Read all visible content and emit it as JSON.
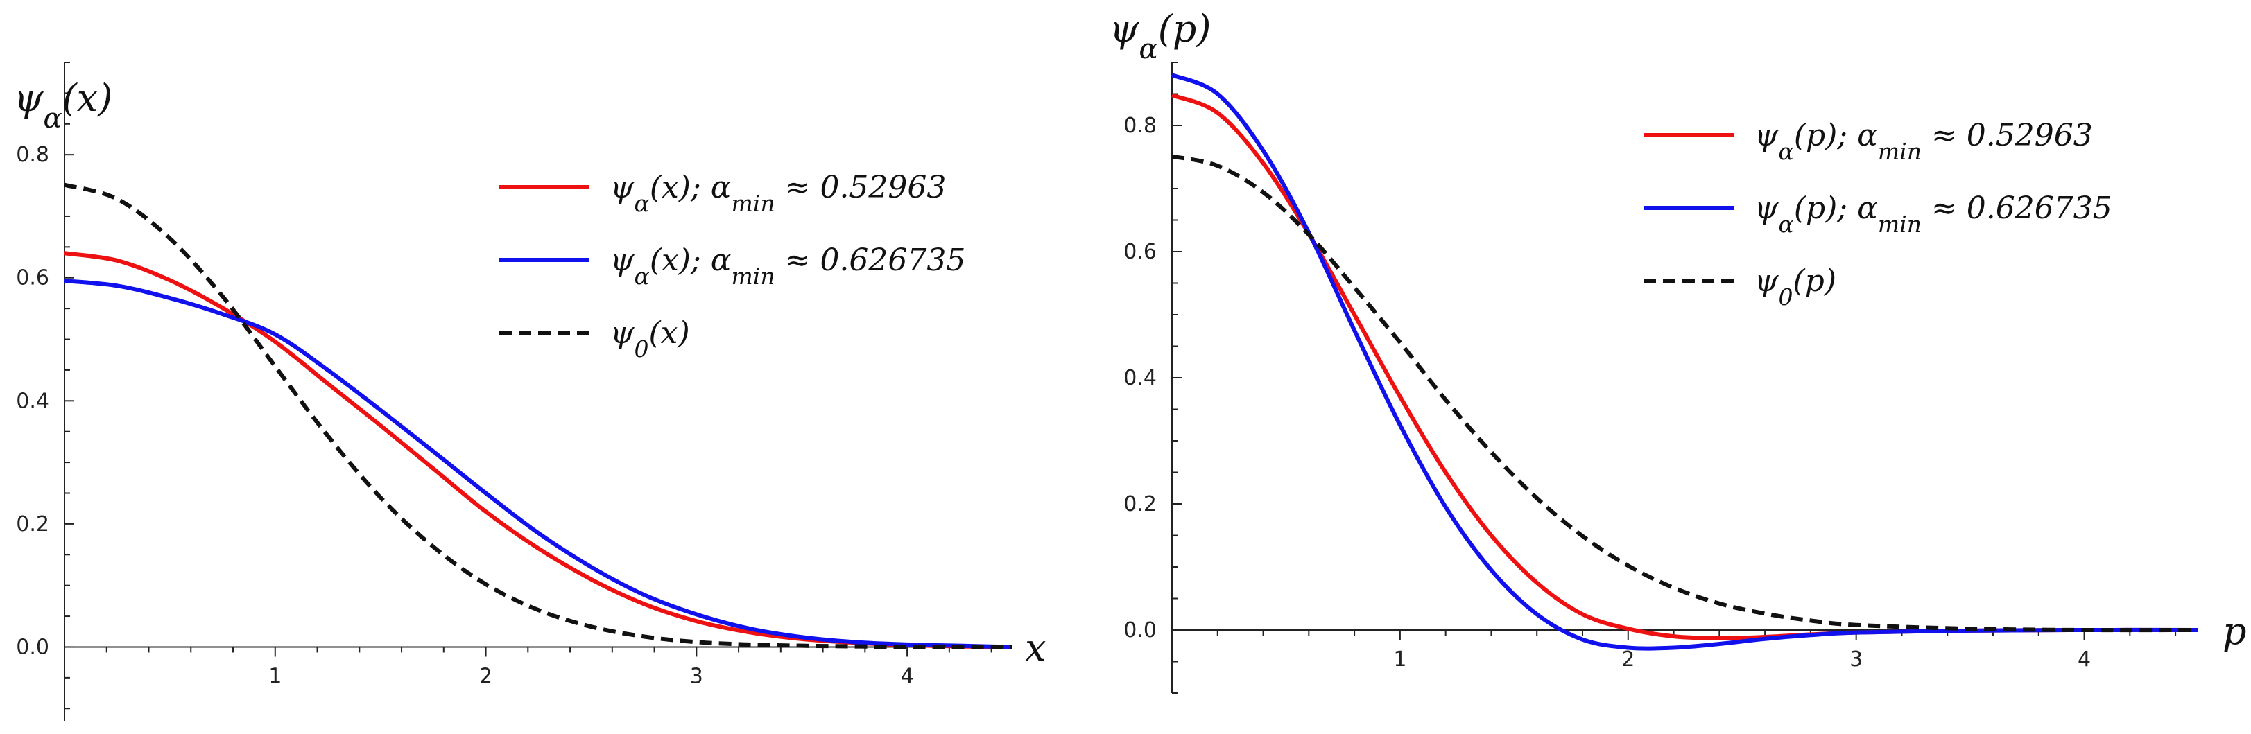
{
  "colors": {
    "red": "#ee1111",
    "blue": "#1111ee",
    "black": "#111111"
  },
  "chart_data": [
    {
      "type": "line",
      "title": "",
      "xlabel": "x",
      "ylabel": "ψα(x)",
      "xlim": [
        0,
        4.5
      ],
      "ylim": [
        -0.12,
        0.95
      ],
      "xticks": [
        1,
        2,
        3,
        4
      ],
      "yticks": [
        0.0,
        0.2,
        0.4,
        0.6,
        0.8
      ],
      "xtick_labels": [
        "1",
        "2",
        "3",
        "4"
      ],
      "ytick_labels": [
        "0.0",
        "0.2",
        "0.4",
        "0.6",
        "0.8"
      ],
      "legend_position": "top-right",
      "series": [
        {
          "name": "ψα(x); αmin ≈ 0.52963",
          "color": "#ee1111",
          "style": "solid",
          "x": [
            0,
            0.25,
            0.5,
            0.75,
            1.0,
            1.25,
            1.5,
            1.75,
            2.0,
            2.25,
            2.5,
            2.75,
            3.0,
            3.25,
            3.5,
            3.75,
            4.0,
            4.25,
            4.5
          ],
          "y": [
            0.64,
            0.628,
            0.596,
            0.551,
            0.496,
            0.428,
            0.36,
            0.29,
            0.22,
            0.16,
            0.11,
            0.07,
            0.042,
            0.024,
            0.013,
            0.007,
            0.003,
            0.001,
            0.0
          ]
        },
        {
          "name": "ψα(x); αmin ≈ 0.626735",
          "color": "#1111ee",
          "style": "solid",
          "x": [
            0,
            0.25,
            0.5,
            0.75,
            1.0,
            1.25,
            1.5,
            1.75,
            2.0,
            2.25,
            2.5,
            2.75,
            3.0,
            3.25,
            3.5,
            3.75,
            4.0,
            4.25,
            4.5
          ],
          "y": [
            0.595,
            0.587,
            0.567,
            0.541,
            0.508,
            0.45,
            0.385,
            0.318,
            0.25,
            0.185,
            0.13,
            0.085,
            0.053,
            0.03,
            0.016,
            0.008,
            0.004,
            0.002,
            0.0
          ]
        },
        {
          "name": "ψ0(x)",
          "color": "#111111",
          "style": "dashed",
          "x": [
            0,
            0.25,
            0.5,
            0.75,
            1.0,
            1.25,
            1.5,
            1.75,
            2.0,
            2.25,
            2.5,
            2.75,
            3.0,
            3.25,
            3.5,
            3.75,
            4.0,
            4.25,
            4.5
          ],
          "y": [
            0.751,
            0.728,
            0.664,
            0.57,
            0.456,
            0.343,
            0.243,
            0.163,
            0.102,
            0.06,
            0.033,
            0.017,
            0.008,
            0.004,
            0.002,
            0.001,
            0.0,
            0.0,
            0.0
          ]
        }
      ]
    },
    {
      "type": "line",
      "title": "",
      "xlabel": "p",
      "ylabel": "ψα(p)",
      "xlim": [
        0,
        4.5
      ],
      "ylim": [
        -0.1,
        0.9
      ],
      "xticks": [
        1,
        2,
        3,
        4
      ],
      "yticks": [
        0.0,
        0.2,
        0.4,
        0.6,
        0.8
      ],
      "xtick_labels": [
        "1",
        "2",
        "3",
        "4"
      ],
      "ytick_labels": [
        "0.0",
        "0.2",
        "0.4",
        "0.6",
        "0.8"
      ],
      "legend_position": "top-right",
      "series": [
        {
          "name": "ψα(p); αmin ≈ 0.52963",
          "color": "#ee1111",
          "style": "solid",
          "x": [
            0,
            0.2,
            0.4,
            0.6,
            0.8,
            1.0,
            1.2,
            1.4,
            1.6,
            1.8,
            2.0,
            2.2,
            2.4,
            2.6,
            2.8,
            3.0,
            3.5,
            4.0,
            4.5
          ],
          "y": [
            0.848,
            0.82,
            0.74,
            0.628,
            0.5,
            0.37,
            0.25,
            0.15,
            0.075,
            0.025,
            0.002,
            -0.01,
            -0.013,
            -0.011,
            -0.007,
            -0.004,
            -0.001,
            0.0,
            0.0
          ]
        },
        {
          "name": "ψα(p); αmin ≈ 0.626735",
          "color": "#1111ee",
          "style": "solid",
          "x": [
            0,
            0.2,
            0.4,
            0.6,
            0.8,
            1.0,
            1.2,
            1.4,
            1.6,
            1.8,
            2.0,
            2.2,
            2.4,
            2.6,
            2.8,
            3.0,
            3.5,
            4.0,
            4.5
          ],
          "y": [
            0.88,
            0.85,
            0.76,
            0.63,
            0.475,
            0.325,
            0.195,
            0.095,
            0.025,
            -0.015,
            -0.028,
            -0.028,
            -0.022,
            -0.014,
            -0.008,
            -0.004,
            -0.001,
            0.0,
            0.0
          ]
        },
        {
          "name": "ψ0(p)",
          "color": "#111111",
          "style": "dashed",
          "x": [
            0,
            0.2,
            0.4,
            0.6,
            0.8,
            1.0,
            1.2,
            1.4,
            1.6,
            1.8,
            2.0,
            2.2,
            2.4,
            2.6,
            2.8,
            3.0,
            3.5,
            4.0,
            4.5
          ],
          "y": [
            0.751,
            0.736,
            0.694,
            0.627,
            0.543,
            0.456,
            0.365,
            0.282,
            0.209,
            0.149,
            0.102,
            0.067,
            0.042,
            0.026,
            0.015,
            0.008,
            0.002,
            0.0,
            0.0
          ]
        }
      ]
    }
  ]
}
